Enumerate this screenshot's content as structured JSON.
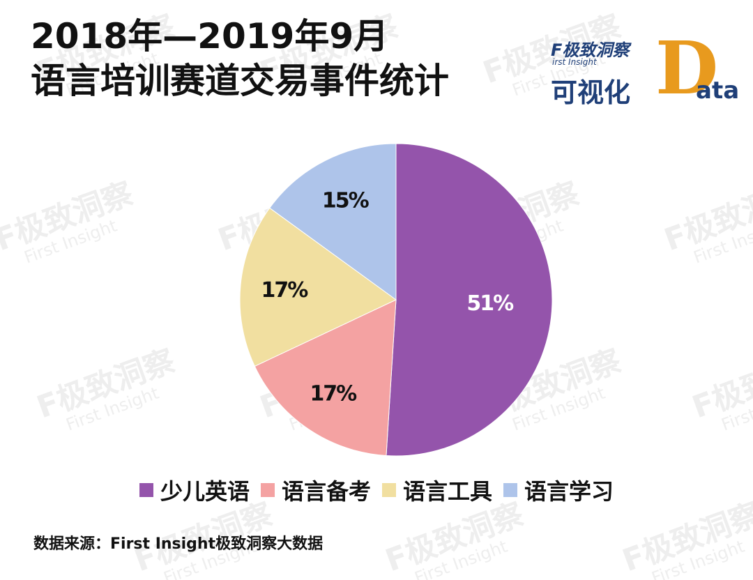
{
  "title": {
    "line1": "2018年—2019年9月",
    "line2": "语言培训赛道交易事件统计"
  },
  "logo": {
    "brand": "F极致洞察",
    "brand_sub": "irst Insight",
    "viz_text": "可视化",
    "d_letter": "D",
    "ata_text": "ata",
    "colors": {
      "navy": "#1f3f78",
      "orange": "#e89a1e"
    }
  },
  "watermark": {
    "line1": "F极致洞察",
    "line2": "First Insight"
  },
  "chart_data": {
    "type": "pie",
    "title": "2018年—2019年9月 语言培训赛道交易事件统计",
    "slices": [
      {
        "label": "少儿英语",
        "value": 51,
        "display": "51%",
        "color": "#9454ab",
        "label_color": "#ffffff"
      },
      {
        "label": "语言备考",
        "value": 17,
        "display": "17%",
        "color": "#f4a2a2",
        "label_color": "#111111"
      },
      {
        "label": "语言工具",
        "value": 17,
        "display": "17%",
        "color": "#f1dfa0",
        "label_color": "#111111"
      },
      {
        "label": "语言学习",
        "value": 15,
        "display": "15%",
        "color": "#aec4ea",
        "label_color": "#111111"
      }
    ],
    "start": "12 o'clock",
    "direction": "clockwise",
    "legend_position": "bottom"
  },
  "legend": [
    "少儿英语",
    "语言备考",
    "语言工具",
    "语言学习"
  ],
  "source": "数据来源：First Insight极致洞察大数据"
}
